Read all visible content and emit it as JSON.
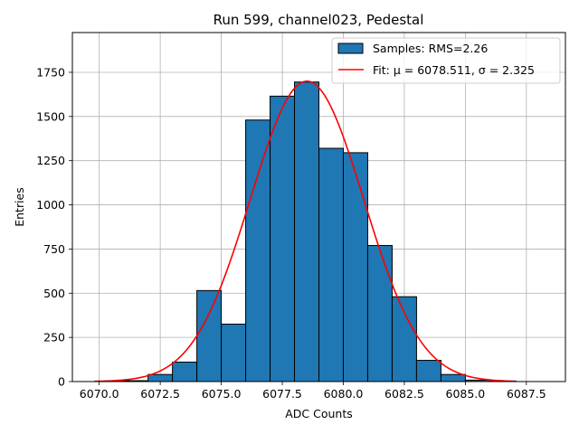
{
  "chart_data": {
    "type": "bar",
    "title": "Run 599, channel023, Pedestal",
    "xlabel": "ADC Counts",
    "ylabel": "Entries",
    "xlim": [
      6068.9,
      6089.1
    ],
    "ylim": [
      0,
      1975
    ],
    "grid": true,
    "legend_placement": "top-right",
    "xticks": [
      6070.0,
      6072.5,
      6075.0,
      6077.5,
      6080.0,
      6082.5,
      6085.0,
      6087.5
    ],
    "xtick_labels": [
      "6070.0",
      "6072.5",
      "6075.0",
      "6077.5",
      "6080.0",
      "6082.5",
      "6085.0",
      "6087.5"
    ],
    "yticks": [
      0,
      250,
      500,
      750,
      1000,
      1250,
      1500,
      1750
    ],
    "ytick_labels": [
      "0",
      "250",
      "500",
      "750",
      "1000",
      "1250",
      "1500",
      "1750"
    ],
    "histogram": {
      "name": "Samples: RMS=2.26",
      "color": "#1f77b4",
      "edge_color": "#000000",
      "bin_edges": [
        6070,
        6071,
        6072,
        6073,
        6074,
        6075,
        6076,
        6077,
        6078,
        6079,
        6080,
        6081,
        6082,
        6083,
        6084,
        6085,
        6086,
        6087,
        6088
      ],
      "counts": [
        2,
        5,
        40,
        110,
        515,
        325,
        1480,
        1615,
        1695,
        1320,
        1295,
        770,
        480,
        120,
        40,
        8,
        2,
        0
      ]
    },
    "fit": {
      "name": "Fit: μ = 6078.511, σ = 2.325",
      "color": "#ff0000",
      "mu": 6078.511,
      "sigma": 2.325,
      "amplitude": 1700,
      "x_range": [
        6069.8,
        6087.1
      ]
    }
  }
}
